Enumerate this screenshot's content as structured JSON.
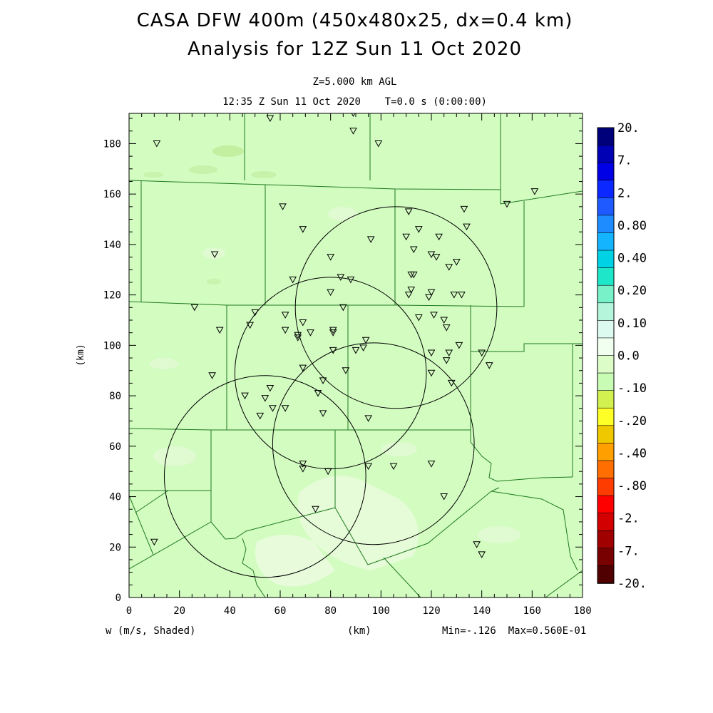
{
  "header": {
    "title_line1": "CASA DFW 400m (450x480x25, dx=0.4 km)",
    "title_line2": "Analysis for 12Z Sun 11 Oct 2020",
    "level": "Z=5.000 km AGL",
    "time": "12:35 Z Sun 11 Oct 2020    T=0.0 s (0:00:00)"
  },
  "footer": {
    "field_label": "w (m/s, Shaded)",
    "x_unit": "(km)",
    "minmax": "Min=-.126  Max=0.560E-01"
  },
  "axes": {
    "xlim": [
      0,
      180
    ],
    "ylim": [
      0,
      192
    ],
    "xticks": [
      "0",
      "20",
      "40",
      "60",
      "80",
      "100",
      "120",
      "140",
      "160",
      "180"
    ],
    "yticks": [
      "0",
      "20",
      "40",
      "60",
      "80",
      "100",
      "120",
      "140",
      "160",
      "180"
    ],
    "ylabel": "(km)",
    "xlabel": "(km)"
  },
  "colorbar": {
    "labels": [
      "20.",
      "7.",
      "2.",
      "0.80",
      "0.40",
      "0.20",
      "0.10",
      "0.0",
      "-.10",
      "-.20",
      "-.40",
      "-.80",
      "-2.",
      "-7.",
      "-20."
    ],
    "colors": [
      "#00007a",
      "#0000b4",
      "#0000e6",
      "#0a28ff",
      "#1e5aff",
      "#1e8cff",
      "#14b4ff",
      "#00d2e6",
      "#1ee6c8",
      "#78f0c8",
      "#b4f5dc",
      "#dcfaf0",
      "#f0fff0",
      "#dcfcc8",
      "#c8fcb4",
      "#d2f050",
      "#ffff28",
      "#f0c800",
      "#ffa000",
      "#ff6e00",
      "#ff3c00",
      "#ff0000",
      "#d20000",
      "#a00000",
      "#780000",
      "#500000"
    ]
  },
  "radars": [
    {
      "cx": 106,
      "cy": 115,
      "r": 40
    },
    {
      "cx": 80,
      "cy": 89,
      "r": 38
    },
    {
      "cx": 97,
      "cy": 61,
      "r": 40
    },
    {
      "cx": 54,
      "cy": 48,
      "r": 40
    }
  ],
  "stations": [
    [
      11,
      180
    ],
    [
      56,
      190
    ],
    [
      89,
      192
    ],
    [
      89,
      185
    ],
    [
      99,
      180
    ],
    [
      161,
      161
    ],
    [
      150,
      156
    ],
    [
      61,
      155
    ],
    [
      133,
      154
    ],
    [
      111,
      153
    ],
    [
      115,
      146
    ],
    [
      69,
      146
    ],
    [
      134,
      147
    ],
    [
      110,
      143
    ],
    [
      96,
      142
    ],
    [
      123,
      143
    ],
    [
      113,
      138
    ],
    [
      120,
      136
    ],
    [
      122,
      135
    ],
    [
      130,
      133
    ],
    [
      127,
      131
    ],
    [
      34,
      136
    ],
    [
      80,
      135
    ],
    [
      112,
      128
    ],
    [
      113,
      128
    ],
    [
      65,
      126
    ],
    [
      84,
      127
    ],
    [
      88,
      126
    ],
    [
      80,
      121
    ],
    [
      111,
      120
    ],
    [
      120,
      121
    ],
    [
      112,
      122
    ],
    [
      119,
      119
    ],
    [
      129,
      120
    ],
    [
      132,
      120
    ],
    [
      26,
      115
    ],
    [
      50,
      113
    ],
    [
      62,
      112
    ],
    [
      85,
      115
    ],
    [
      121,
      112
    ],
    [
      115,
      111
    ],
    [
      125,
      110
    ],
    [
      126,
      107
    ],
    [
      36,
      106
    ],
    [
      48,
      108
    ],
    [
      62,
      106
    ],
    [
      69,
      109
    ],
    [
      67,
      104
    ],
    [
      72,
      105
    ],
    [
      67,
      103
    ],
    [
      81,
      106
    ],
    [
      81,
      105
    ],
    [
      94,
      102
    ],
    [
      93,
      99
    ],
    [
      90,
      98
    ],
    [
      81,
      98
    ],
    [
      131,
      100
    ],
    [
      127,
      97
    ],
    [
      120,
      97
    ],
    [
      140,
      97
    ],
    [
      126,
      94
    ],
    [
      143,
      92
    ],
    [
      33,
      88
    ],
    [
      69,
      91
    ],
    [
      86,
      90
    ],
    [
      120,
      89
    ],
    [
      77,
      86
    ],
    [
      128,
      85
    ],
    [
      56,
      83
    ],
    [
      54,
      79
    ],
    [
      46,
      80
    ],
    [
      75,
      81
    ],
    [
      57,
      75
    ],
    [
      62,
      75
    ],
    [
      77,
      73
    ],
    [
      52,
      72
    ],
    [
      95,
      71
    ],
    [
      69,
      53
    ],
    [
      69,
      51
    ],
    [
      79,
      50
    ],
    [
      95,
      52
    ],
    [
      105,
      52
    ],
    [
      120,
      53
    ],
    [
      125,
      40
    ],
    [
      74,
      35
    ],
    [
      10,
      22
    ],
    [
      138,
      21
    ],
    [
      140,
      17
    ]
  ]
}
